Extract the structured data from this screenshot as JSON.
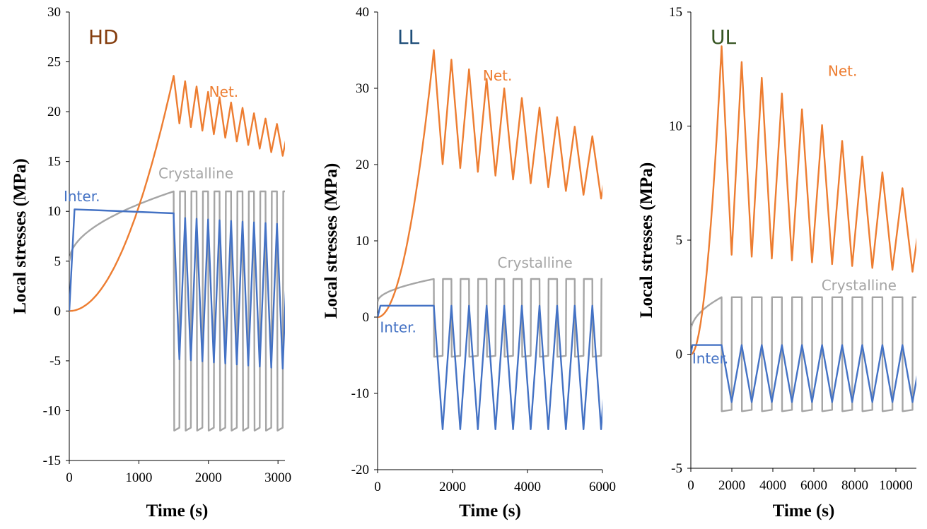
{
  "chart_data": [
    {
      "type": "line",
      "panel_label": "HD",
      "panel_label_color": "#843C0C",
      "xlabel": "Time (s)",
      "ylabel": "Local stresses (MPa)",
      "xlim": [
        0,
        3100
      ],
      "ylim": [
        -15,
        30
      ],
      "xticks": [
        0,
        1000,
        2000,
        3000
      ],
      "yticks": [
        -15,
        -10,
        -5,
        0,
        5,
        10,
        15,
        20,
        25,
        30
      ],
      "ramp_end": 1500,
      "period": 165,
      "series": [
        {
          "name": "Net.",
          "color": "#ED7D31",
          "label_at": [
            2220,
            21.5
          ],
          "ramp": {
            "start": 0,
            "peak": 23.6,
            "shape": "convex"
          },
          "cycle": {
            "peak_start": 23.6,
            "peak_end": 18.4,
            "trough_start": 19.0,
            "trough_end": 15.5
          }
        },
        {
          "name": "Crystalline",
          "color": "#A5A5A5",
          "label_at": [
            1820,
            13.3
          ],
          "ramp": {
            "start": 5.0,
            "peak": 12.0,
            "shape": "concave"
          },
          "cycle": {
            "peak_start": 12.0,
            "peak_end": 12.0,
            "trough_start": -12.0,
            "trough_end": -12.0,
            "square": true
          }
        },
        {
          "name": "Inter.",
          "color": "#4472C4",
          "label_at": [
            180,
            11.0
          ],
          "ramp": {
            "start": 0,
            "peak": 10.2,
            "shape": "step",
            "plateau_end": 9.8
          },
          "cycle": {
            "peak_start": 9.4,
            "peak_end": 8.7,
            "trough_start": -4.8,
            "trough_end": -5.8
          }
        }
      ]
    },
    {
      "type": "line",
      "panel_label": "LL",
      "panel_label_color": "#1F4E79",
      "xlabel": "Time (s)",
      "ylabel": "Local stresses (MPa)",
      "xlim": [
        0,
        6000
      ],
      "ylim": [
        -20,
        40
      ],
      "xticks": [
        0,
        2000,
        4000,
        6000
      ],
      "yticks": [
        -20,
        -10,
        0,
        10,
        20,
        30,
        40
      ],
      "ramp_end": 1500,
      "period": 470,
      "series": [
        {
          "name": "Net.",
          "color": "#ED7D31",
          "label_at": [
            3200,
            31.0
          ],
          "ramp": {
            "start": 0,
            "peak": 35.0,
            "shape": "convex"
          },
          "cycle": {
            "peak_start": 35.0,
            "peak_end": 23.0,
            "trough_start": 20.3,
            "trough_end": 15.5
          }
        },
        {
          "name": "Crystalline",
          "color": "#A5A5A5",
          "label_at": [
            4200,
            6.5
          ],
          "ramp": {
            "start": 2.0,
            "peak": 5.0,
            "shape": "concave"
          },
          "cycle": {
            "peak_start": 5.0,
            "peak_end": 5.0,
            "trough_start": -5.2,
            "trough_end": -5.2,
            "square": true
          }
        },
        {
          "name": "Inter.",
          "color": "#4472C4",
          "label_at": [
            550,
            -2.0
          ],
          "ramp": {
            "start": 1.5,
            "peak": 1.5,
            "shape": "step",
            "plateau_end": 1.5
          },
          "cycle": {
            "peak_start": 1.5,
            "peak_end": 1.5,
            "trough_start": -14.7,
            "trough_end": -14.7
          }
        }
      ]
    },
    {
      "type": "line",
      "panel_label": "UL",
      "panel_label_color": "#375623",
      "xlabel": "Time (s)",
      "ylabel": "Local stresses (MPa)",
      "xlim": [
        0,
        11000
      ],
      "ylim": [
        -5,
        15
      ],
      "xticks": [
        0,
        2000,
        4000,
        6000,
        8000,
        10000
      ],
      "yticks": [
        -5,
        0,
        5,
        10,
        15
      ],
      "ramp_end": 1500,
      "period": 980,
      "series": [
        {
          "name": "Net.",
          "color": "#ED7D31",
          "label_at": [
            7400,
            12.2
          ],
          "ramp": {
            "start": 0,
            "peak": 13.5,
            "shape": "convex"
          },
          "cycle": {
            "peak_start": 13.5,
            "peak_end": 6.8,
            "trough_start": 4.4,
            "trough_end": 3.6
          }
        },
        {
          "name": "Crystalline",
          "color": "#A5A5A5",
          "label_at": [
            8200,
            2.8
          ],
          "ramp": {
            "start": 1.0,
            "peak": 2.5,
            "shape": "concave"
          },
          "cycle": {
            "peak_start": 2.5,
            "peak_end": 2.5,
            "trough_start": -2.5,
            "trough_end": -2.5,
            "square": true
          }
        },
        {
          "name": "Inter.",
          "color": "#4472C4",
          "label_at": [
            950,
            -0.4
          ],
          "ramp": {
            "start": 0.4,
            "peak": 0.4,
            "shape": "step",
            "plateau_end": 0.4
          },
          "cycle": {
            "peak_start": 0.4,
            "peak_end": 0.4,
            "trough_start": -2.1,
            "trough_end": -2.1
          }
        }
      ]
    }
  ]
}
